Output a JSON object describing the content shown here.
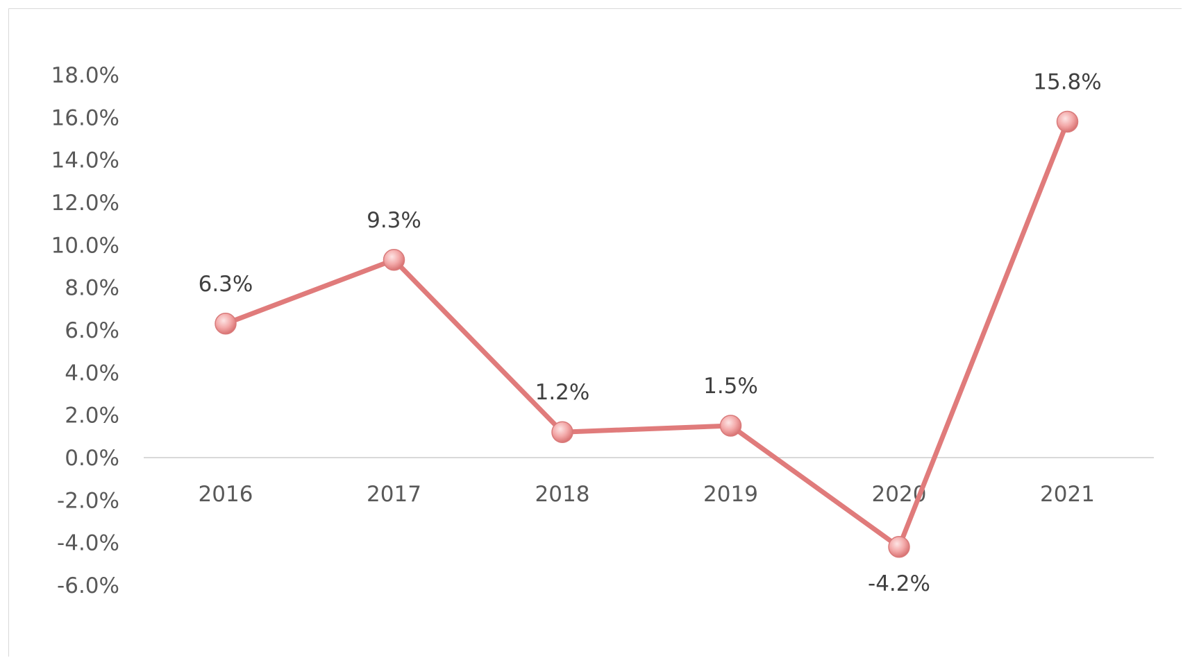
{
  "chart_data": {
    "type": "line",
    "title": "",
    "xlabel": "",
    "ylabel": "",
    "categories": [
      "2016",
      "2017",
      "2018",
      "2019",
      "2020",
      "2021"
    ],
    "series": [
      {
        "values": [
          6.3,
          9.3,
          1.2,
          1.5,
          -4.2,
          15.8
        ],
        "labels": [
          "6.3%",
          "9.3%",
          "1.2%",
          "1.5%",
          "-4.2%",
          "15.8%"
        ],
        "color": "#e07b7b"
      }
    ],
    "ylim": [
      -6,
      18
    ],
    "yticks": [
      18,
      16,
      14,
      12,
      10,
      8,
      6,
      4,
      2,
      0,
      -2,
      -4,
      -6
    ],
    "ytick_labels": [
      "18.0%",
      "16.0%",
      "14.0%",
      "12.0%",
      "10.0%",
      "8.0%",
      "6.0%",
      "4.0%",
      "2.0%",
      "0.0%",
      "-2.0%",
      "-4.0%",
      "-6.0%"
    ],
    "grid": false,
    "legend": "none",
    "zero_line_color": "#d9d9d9",
    "marker_color": "#f2a7a7"
  }
}
